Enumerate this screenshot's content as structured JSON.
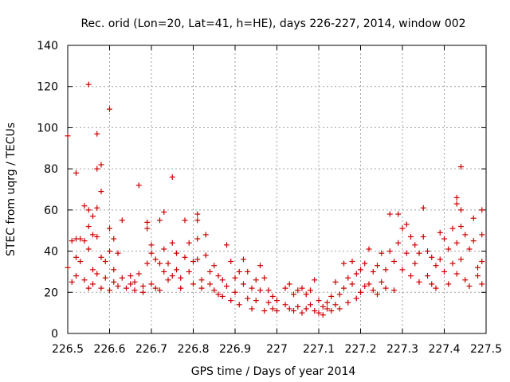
{
  "chart_data": {
    "type": "scatter",
    "title": "Rec. orid (Lon=20, Lat=41, h=HE), days 226-227, 2014, window 002",
    "xlabel": "GPS time / Days of year 2014",
    "ylabel": "STEC from uqrg / TECUs",
    "xlim": [
      226.5,
      227.5
    ],
    "ylim": [
      0,
      140
    ],
    "x_ticks": [
      226.5,
      226.6,
      226.7,
      226.8,
      226.9,
      227.0,
      227.1,
      227.2,
      227.3,
      227.4,
      227.5
    ],
    "x_tick_labels": [
      "226.5",
      "226.6",
      "226.7",
      "226.8",
      "226.9",
      "227",
      "227.1",
      "227.2",
      "227.3",
      "227.4",
      "227.5"
    ],
    "y_ticks": [
      0,
      20,
      40,
      60,
      80,
      100,
      120,
      140
    ],
    "y_tick_labels": [
      "0",
      "20",
      "40",
      "60",
      "80",
      "100",
      "120",
      "140"
    ],
    "grid": true,
    "marker": "+",
    "colors": {
      "points": "#cc0000",
      "grid": "#a0a0a0",
      "axes": "#000000"
    },
    "series": [
      {
        "points": [
          [
            226.5,
            96
          ],
          [
            226.5,
            32
          ],
          [
            226.51,
            45
          ],
          [
            226.51,
            25
          ],
          [
            226.52,
            78
          ],
          [
            226.52,
            46
          ],
          [
            226.52,
            37
          ],
          [
            226.52,
            28
          ],
          [
            226.53,
            46
          ],
          [
            226.53,
            35
          ],
          [
            226.54,
            62
          ],
          [
            226.54,
            45
          ],
          [
            226.54,
            26
          ],
          [
            226.55,
            60
          ],
          [
            226.55,
            52
          ],
          [
            226.55,
            41
          ],
          [
            226.55,
            22
          ],
          [
            226.55,
            121
          ],
          [
            226.56,
            57
          ],
          [
            226.56,
            48
          ],
          [
            226.56,
            31
          ],
          [
            226.56,
            24
          ],
          [
            226.57,
            97
          ],
          [
            226.57,
            80
          ],
          [
            226.57,
            61
          ],
          [
            226.57,
            47
          ],
          [
            226.57,
            29
          ],
          [
            226.58,
            82
          ],
          [
            226.58,
            69
          ],
          [
            226.58,
            37
          ],
          [
            226.58,
            22
          ],
          [
            226.59,
            35
          ],
          [
            226.59,
            27
          ],
          [
            226.6,
            109
          ],
          [
            226.6,
            51
          ],
          [
            226.6,
            40
          ],
          [
            226.6,
            21
          ],
          [
            226.61,
            46
          ],
          [
            226.61,
            31
          ],
          [
            226.61,
            25
          ],
          [
            226.62,
            39
          ],
          [
            226.62,
            23
          ],
          [
            226.63,
            55
          ],
          [
            226.63,
            27
          ],
          [
            226.64,
            22
          ],
          [
            226.65,
            28
          ],
          [
            226.65,
            24
          ],
          [
            226.66,
            25
          ],
          [
            226.66,
            21
          ],
          [
            226.67,
            72
          ],
          [
            226.67,
            29
          ],
          [
            226.68,
            23
          ],
          [
            226.68,
            20
          ],
          [
            226.69,
            54
          ],
          [
            226.69,
            51
          ],
          [
            226.69,
            34
          ],
          [
            226.7,
            43
          ],
          [
            226.7,
            39
          ],
          [
            226.7,
            24
          ],
          [
            226.71,
            36
          ],
          [
            226.71,
            22
          ],
          [
            226.72,
            55
          ],
          [
            226.72,
            34
          ],
          [
            226.72,
            21
          ],
          [
            226.73,
            59
          ],
          [
            226.73,
            41
          ],
          [
            226.73,
            30
          ],
          [
            226.74,
            34
          ],
          [
            226.74,
            26
          ],
          [
            226.75,
            76
          ],
          [
            226.75,
            44
          ],
          [
            226.75,
            28
          ],
          [
            226.76,
            39
          ],
          [
            226.76,
            31
          ],
          [
            226.77,
            27
          ],
          [
            226.77,
            22
          ],
          [
            226.78,
            55
          ],
          [
            226.78,
            37
          ],
          [
            226.79,
            44
          ],
          [
            226.79,
            30
          ],
          [
            226.8,
            35
          ],
          [
            226.8,
            24
          ],
          [
            226.81,
            58
          ],
          [
            226.81,
            55
          ],
          [
            226.81,
            46
          ],
          [
            226.81,
            36
          ],
          [
            226.82,
            26
          ],
          [
            226.82,
            22
          ],
          [
            226.83,
            48
          ],
          [
            226.83,
            38
          ],
          [
            226.84,
            30
          ],
          [
            226.84,
            24
          ],
          [
            226.85,
            33
          ],
          [
            226.85,
            21
          ],
          [
            226.86,
            28
          ],
          [
            226.86,
            19
          ],
          [
            226.87,
            26
          ],
          [
            226.87,
            18
          ],
          [
            226.88,
            43
          ],
          [
            226.88,
            23
          ],
          [
            226.89,
            35
          ],
          [
            226.89,
            16
          ],
          [
            226.9,
            27
          ],
          [
            226.9,
            20
          ],
          [
            226.91,
            30
          ],
          [
            226.91,
            14
          ],
          [
            226.92,
            36
          ],
          [
            226.92,
            24
          ],
          [
            226.93,
            30
          ],
          [
            226.93,
            17
          ],
          [
            226.94,
            22
          ],
          [
            226.94,
            12
          ],
          [
            226.95,
            26
          ],
          [
            226.95,
            16
          ],
          [
            226.96,
            33
          ],
          [
            226.96,
            21
          ],
          [
            226.97,
            27
          ],
          [
            226.97,
            11
          ],
          [
            226.98,
            21
          ],
          [
            226.98,
            15
          ],
          [
            226.99,
            18
          ],
          [
            226.99,
            12
          ],
          [
            227.0,
            16
          ],
          [
            227.0,
            11
          ],
          [
            227.02,
            22
          ],
          [
            227.02,
            14
          ],
          [
            227.03,
            24
          ],
          [
            227.03,
            12
          ],
          [
            227.04,
            19
          ],
          [
            227.04,
            11
          ],
          [
            227.05,
            21
          ],
          [
            227.05,
            13
          ],
          [
            227.06,
            22
          ],
          [
            227.06,
            10
          ],
          [
            227.07,
            19
          ],
          [
            227.07,
            12
          ],
          [
            227.08,
            21
          ],
          [
            227.08,
            14
          ],
          [
            227.09,
            26
          ],
          [
            227.09,
            11
          ],
          [
            227.1,
            16
          ],
          [
            227.1,
            10
          ],
          [
            227.11,
            13
          ],
          [
            227.11,
            9
          ],
          [
            227.12,
            15
          ],
          [
            227.12,
            12
          ],
          [
            227.13,
            18
          ],
          [
            227.13,
            11
          ],
          [
            227.14,
            25
          ],
          [
            227.14,
            14
          ],
          [
            227.15,
            19
          ],
          [
            227.15,
            12
          ],
          [
            227.16,
            34
          ],
          [
            227.16,
            22
          ],
          [
            227.17,
            27
          ],
          [
            227.17,
            15
          ],
          [
            227.18,
            35
          ],
          [
            227.18,
            24
          ],
          [
            227.19,
            29
          ],
          [
            227.19,
            17
          ],
          [
            227.2,
            31
          ],
          [
            227.2,
            20
          ],
          [
            227.21,
            34
          ],
          [
            227.21,
            23
          ],
          [
            227.22,
            41
          ],
          [
            227.22,
            24
          ],
          [
            227.23,
            30
          ],
          [
            227.23,
            21
          ],
          [
            227.24,
            33
          ],
          [
            227.24,
            19
          ],
          [
            227.25,
            39
          ],
          [
            227.25,
            25
          ],
          [
            227.26,
            31
          ],
          [
            227.26,
            22
          ],
          [
            227.27,
            58
          ],
          [
            227.27,
            40
          ],
          [
            227.28,
            35
          ],
          [
            227.28,
            21
          ],
          [
            227.29,
            58
          ],
          [
            227.29,
            44
          ],
          [
            227.3,
            51
          ],
          [
            227.3,
            31
          ],
          [
            227.31,
            53
          ],
          [
            227.31,
            39
          ],
          [
            227.32,
            47
          ],
          [
            227.32,
            28
          ],
          [
            227.33,
            43
          ],
          [
            227.33,
            34
          ],
          [
            227.34,
            39
          ],
          [
            227.34,
            25
          ],
          [
            227.35,
            61
          ],
          [
            227.35,
            47
          ],
          [
            227.36,
            40
          ],
          [
            227.36,
            28
          ],
          [
            227.37,
            37
          ],
          [
            227.37,
            24
          ],
          [
            227.38,
            33
          ],
          [
            227.38,
            22
          ],
          [
            227.39,
            49
          ],
          [
            227.39,
            36
          ],
          [
            227.4,
            46
          ],
          [
            227.4,
            30
          ],
          [
            227.41,
            41
          ],
          [
            227.41,
            24
          ],
          [
            227.42,
            51
          ],
          [
            227.42,
            34
          ],
          [
            227.43,
            66
          ],
          [
            227.43,
            63
          ],
          [
            227.43,
            44
          ],
          [
            227.43,
            29
          ],
          [
            227.44,
            60
          ],
          [
            227.44,
            52
          ],
          [
            227.44,
            81
          ],
          [
            227.44,
            36
          ],
          [
            227.45,
            48
          ],
          [
            227.45,
            26
          ],
          [
            227.46,
            41
          ],
          [
            227.46,
            23
          ],
          [
            227.47,
            56
          ],
          [
            227.47,
            45
          ],
          [
            227.48,
            32
          ],
          [
            227.48,
            28
          ],
          [
            227.49,
            48
          ],
          [
            227.49,
            35
          ],
          [
            227.49,
            60
          ],
          [
            227.49,
            24
          ]
        ]
      }
    ]
  }
}
